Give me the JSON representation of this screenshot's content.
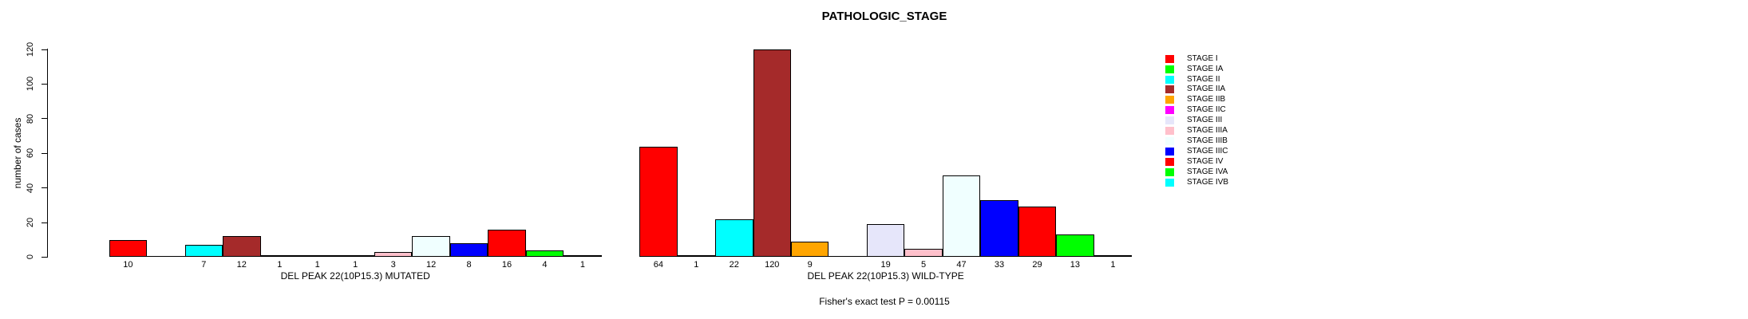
{
  "chart_data": {
    "type": "bar",
    "title": "PATHOLOGIC_STAGE",
    "ylabel": "number of cases",
    "ylim": [
      0,
      120
    ],
    "yticks": [
      0,
      20,
      40,
      60,
      80,
      100,
      120
    ],
    "grid": false,
    "legend_position": "right",
    "annotation": "Fisher's exact test P = 0.00115",
    "categories": [
      "STAGE I",
      "STAGE IA",
      "STAGE II",
      "STAGE IIA",
      "STAGE IIB",
      "STAGE IIC",
      "STAGE III",
      "STAGE IIIA",
      "STAGE IIIB",
      "STAGE IIIC",
      "STAGE IV",
      "STAGE IVA",
      "STAGE IVB"
    ],
    "category_colors": [
      "#ff0000",
      "#00ff00",
      "#00ffff",
      "#a52a2a",
      "#ffa500",
      "#ff00ff",
      "#e6e6fa",
      "#ffc0cb",
      "#f0ffff",
      "#0000ff",
      "#ff0000",
      "#00ff00",
      "#00ffff"
    ],
    "groups": [
      {
        "label": "DEL PEAK 22(10P15.3) MUTATED",
        "values": [
          10,
          0,
          7,
          12,
          1,
          1,
          1,
          3,
          12,
          8,
          16,
          4,
          1
        ]
      },
      {
        "label": "DEL PEAK 22(10P15.3) WILD-TYPE",
        "values": [
          64,
          1,
          22,
          120,
          9,
          0,
          19,
          5,
          47,
          33,
          29,
          13,
          1
        ]
      }
    ]
  }
}
